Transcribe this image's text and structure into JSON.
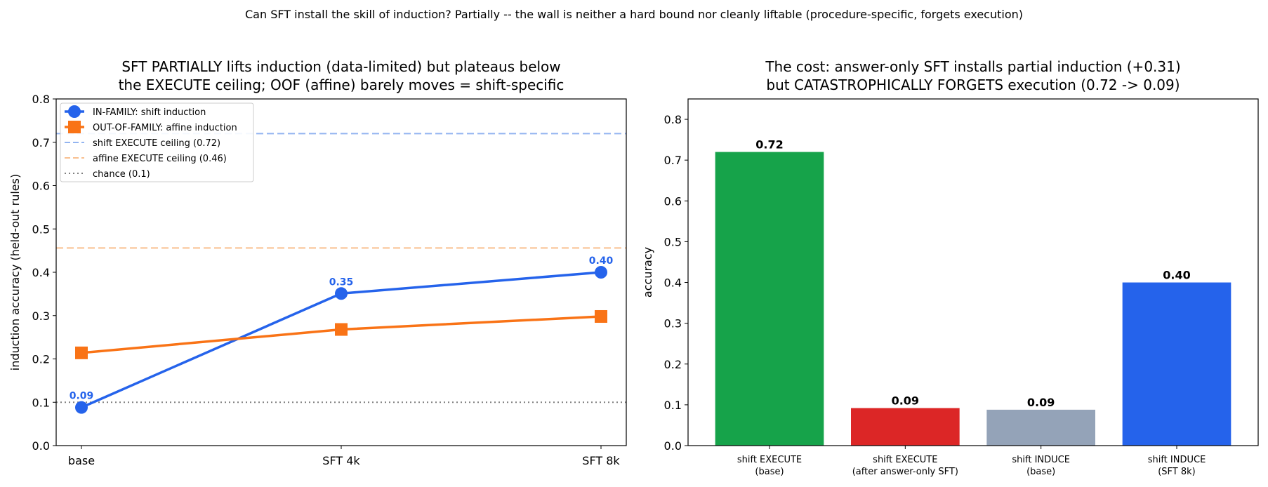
{
  "suptitle": "Can SFT install the skill of induction? Partially -- the wall is neither a hard bound nor cleanly liftable (procedure-specific, forgets execution)",
  "chart_data": [
    {
      "type": "line",
      "title_lines": [
        "SFT PARTIALLY lifts induction (data-limited) but plateaus below",
        "the EXECUTE ceiling; OOF (affine) barely moves = shift-specific"
      ],
      "xlabel": "",
      "ylabel": "induction accuracy (held-out rules)",
      "ylim": [
        0,
        0.8
      ],
      "yticks": [
        "0.0",
        "0.1",
        "0.2",
        "0.3",
        "0.4",
        "0.5",
        "0.6",
        "0.7",
        "0.8"
      ],
      "categories": [
        "base",
        "SFT 4k",
        "SFT 8k"
      ],
      "grid": false,
      "legend_position": "upper-left",
      "series": [
        {
          "name": "IN-FAMILY: shift induction",
          "values": [
            0.088,
            0.351,
            0.4
          ],
          "labels": [
            "0.09",
            "0.35",
            "0.40"
          ],
          "color": "#2563eb",
          "marker": "circle"
        },
        {
          "name": "OUT-OF-FAMILY: affine induction",
          "values": [
            0.214,
            0.268,
            0.298
          ],
          "color": "#f97316",
          "marker": "square"
        }
      ],
      "reference_lines": [
        {
          "name": "shift EXECUTE ceiling (0.72)",
          "value": 0.72,
          "color": "#93b4f0",
          "style": "dashed"
        },
        {
          "name": "affine EXECUTE ceiling (0.46)",
          "value": 0.456,
          "color": "#f9c08f",
          "style": "dashed"
        },
        {
          "name": "chance (0.1)",
          "value": 0.1,
          "color": "#808080",
          "style": "dotted"
        }
      ]
    },
    {
      "type": "bar",
      "title_lines": [
        "The cost: answer-only SFT installs partial induction (+0.31)",
        "but CATASTROPHICALLY FORGETS execution (0.72 -> 0.09)"
      ],
      "xlabel": "",
      "ylabel": "accuracy",
      "ylim": [
        0,
        0.85
      ],
      "yticks": [
        "0.0",
        "0.1",
        "0.2",
        "0.3",
        "0.4",
        "0.5",
        "0.6",
        "0.7",
        "0.8"
      ],
      "grid": false,
      "categories": [
        [
          "shift EXECUTE",
          "(base)"
        ],
        [
          "shift EXECUTE",
          "(after answer-only SFT)"
        ],
        [
          "shift INDUCE",
          "(base)"
        ],
        [
          "shift INDUCE",
          "(SFT 8k)"
        ]
      ],
      "values": [
        0.72,
        0.092,
        0.088,
        0.4
      ],
      "labels": [
        "0.72",
        "0.09",
        "0.09",
        "0.40"
      ],
      "colors": [
        "#16a34a",
        "#dc2626",
        "#94a3b8",
        "#2563eb"
      ]
    }
  ]
}
